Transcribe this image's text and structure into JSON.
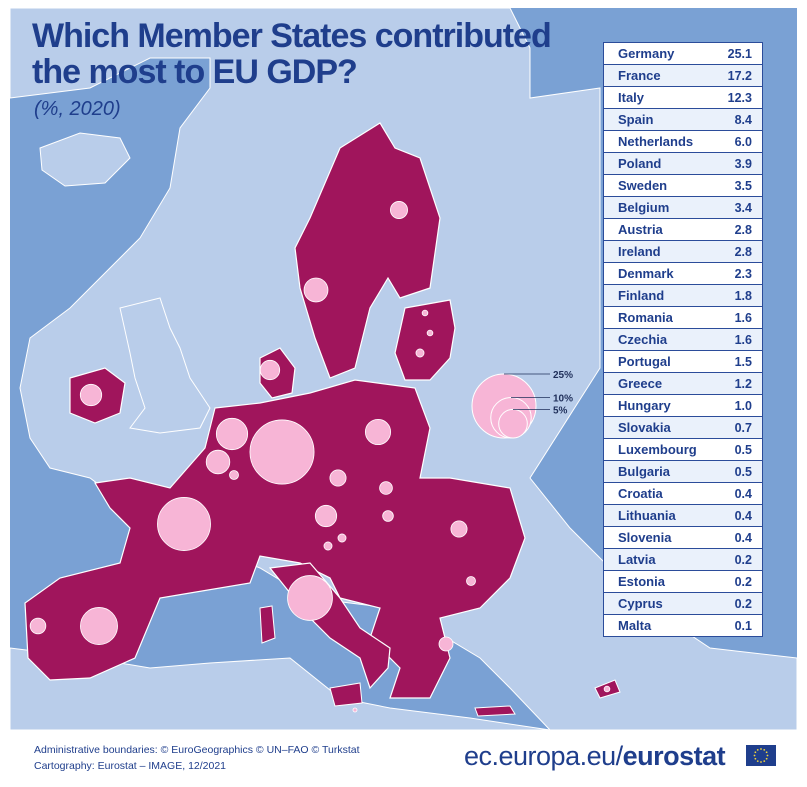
{
  "title_line1": "Which Member States contributed",
  "title_line2": "the most to EU GDP?",
  "subtitle": "(%, 2020)",
  "legend": {
    "labels": [
      "25%",
      "10%",
      "5%"
    ],
    "values": [
      25,
      10,
      5
    ]
  },
  "table": [
    {
      "country": "Germany",
      "value": "25.1"
    },
    {
      "country": "France",
      "value": "17.2"
    },
    {
      "country": "Italy",
      "value": "12.3"
    },
    {
      "country": "Spain",
      "value": "8.4"
    },
    {
      "country": "Netherlands",
      "value": "6.0"
    },
    {
      "country": "Poland",
      "value": "3.9"
    },
    {
      "country": "Sweden",
      "value": "3.5"
    },
    {
      "country": "Belgium",
      "value": "3.4"
    },
    {
      "country": "Austria",
      "value": "2.8"
    },
    {
      "country": "Ireland",
      "value": "2.8"
    },
    {
      "country": "Denmark",
      "value": "2.3"
    },
    {
      "country": "Finland",
      "value": "1.8"
    },
    {
      "country": "Romania",
      "value": "1.6"
    },
    {
      "country": "Czechia",
      "value": "1.6"
    },
    {
      "country": "Portugal",
      "value": "1.5"
    },
    {
      "country": "Greece",
      "value": "1.2"
    },
    {
      "country": "Hungary",
      "value": "1.0"
    },
    {
      "country": "Slovakia",
      "value": "0.7"
    },
    {
      "country": "Luxembourg",
      "value": "0.5"
    },
    {
      "country": "Bulgaria",
      "value": "0.5"
    },
    {
      "country": "Croatia",
      "value": "0.4"
    },
    {
      "country": "Lithuania",
      "value": "0.4"
    },
    {
      "country": "Slovenia",
      "value": "0.4"
    },
    {
      "country": "Latvia",
      "value": "0.2"
    },
    {
      "country": "Estonia",
      "value": "0.2"
    },
    {
      "country": "Cyprus",
      "value": "0.2"
    },
    {
      "country": "Malta",
      "value": "0.1"
    }
  ],
  "footer": {
    "credit_line1": "Administrative boundaries: © EuroGeographics © UN–FAO © Turkstat",
    "credit_line2": "Cartography: Eurostat – IMAGE, 12/2021",
    "brand_prefix": "ec.europa.eu/",
    "brand_name": "eurostat"
  },
  "colors": {
    "sea": "#7aa1d4",
    "land_non_eu": "#b9cdea",
    "eu_member": "#a0155c",
    "bubble": "#f7b5d6",
    "title": "#1f3e8c"
  }
}
